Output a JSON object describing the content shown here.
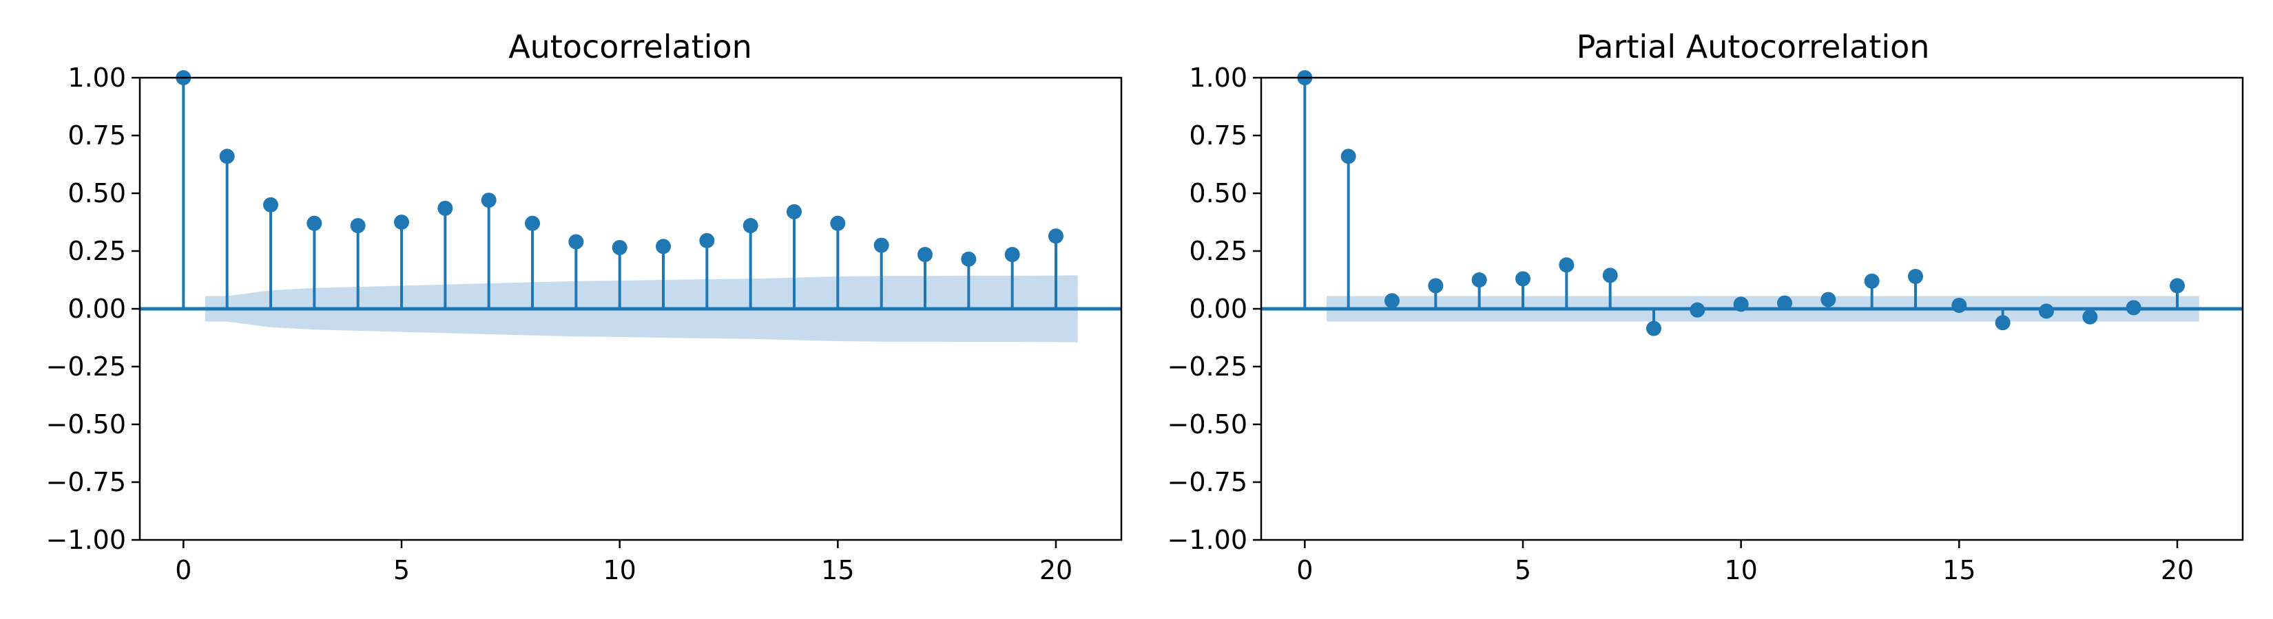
{
  "chart_data": [
    {
      "type": "stem",
      "title": "Autocorrelation",
      "xlabel": "",
      "ylabel": "",
      "xlim": [
        -1,
        21.5
      ],
      "ylim": [
        -1.0,
        1.0
      ],
      "xticks": [
        "0",
        "5",
        "10",
        "15",
        "20"
      ],
      "yticks": [
        "1.00",
        "0.75",
        "0.50",
        "0.25",
        "0.00",
        "−0.25",
        "−0.50",
        "−0.75",
        "−1.00"
      ],
      "lags": [
        0,
        1,
        2,
        3,
        4,
        5,
        6,
        7,
        8,
        9,
        10,
        11,
        12,
        13,
        14,
        15,
        16,
        17,
        18,
        19,
        20
      ],
      "values": [
        1.0,
        0.66,
        0.45,
        0.37,
        0.36,
        0.375,
        0.435,
        0.47,
        0.37,
        0.29,
        0.265,
        0.27,
        0.295,
        0.36,
        0.42,
        0.37,
        0.275,
        0.235,
        0.215,
        0.235,
        0.315
      ],
      "confidence_band": {
        "lags": [
          0.5,
          1,
          2,
          3,
          4,
          5,
          6,
          7,
          8,
          9,
          10,
          11,
          12,
          13,
          14,
          15,
          16,
          17,
          18,
          19,
          20,
          20.5
        ],
        "upper": [
          0.055,
          0.055,
          0.08,
          0.09,
          0.095,
          0.1,
          0.105,
          0.11,
          0.115,
          0.12,
          0.122,
          0.125,
          0.128,
          0.13,
          0.135,
          0.14,
          0.142,
          0.142,
          0.143,
          0.143,
          0.144,
          0.145
        ],
        "lower": [
          -0.055,
          -0.055,
          -0.08,
          -0.09,
          -0.095,
          -0.1,
          -0.105,
          -0.11,
          -0.115,
          -0.12,
          -0.122,
          -0.125,
          -0.128,
          -0.13,
          -0.135,
          -0.14,
          -0.142,
          -0.142,
          -0.143,
          -0.143,
          -0.144,
          -0.145
        ]
      },
      "colors": {
        "marker": "#1f77b4",
        "band": "#c6dbed",
        "baseline": "#1f77b4"
      },
      "grid": false
    },
    {
      "type": "stem",
      "title": "Partial Autocorrelation",
      "xlabel": "",
      "ylabel": "",
      "xlim": [
        -1,
        21.5
      ],
      "ylim": [
        -1.0,
        1.0
      ],
      "xticks": [
        "0",
        "5",
        "10",
        "15",
        "20"
      ],
      "yticks": [
        "1.00",
        "0.75",
        "0.50",
        "0.25",
        "0.00",
        "−0.25",
        "−0.50",
        "−0.75",
        "−1.00"
      ],
      "lags": [
        0,
        1,
        2,
        3,
        4,
        5,
        6,
        7,
        8,
        9,
        10,
        11,
        12,
        13,
        14,
        15,
        16,
        17,
        18,
        19,
        20
      ],
      "values": [
        1.0,
        0.66,
        0.035,
        0.1,
        0.125,
        0.13,
        0.19,
        0.145,
        -0.085,
        -0.005,
        0.02,
        0.025,
        0.04,
        0.12,
        0.14,
        0.015,
        -0.06,
        -0.01,
        -0.035,
        0.005,
        0.1
      ],
      "confidence_band": {
        "lags": [
          0.5,
          20.5
        ],
        "upper": [
          0.055,
          0.055
        ],
        "lower": [
          -0.055,
          -0.055
        ]
      },
      "colors": {
        "marker": "#1f77b4",
        "band": "#c6dbed",
        "baseline": "#1f77b4"
      },
      "grid": false
    }
  ]
}
